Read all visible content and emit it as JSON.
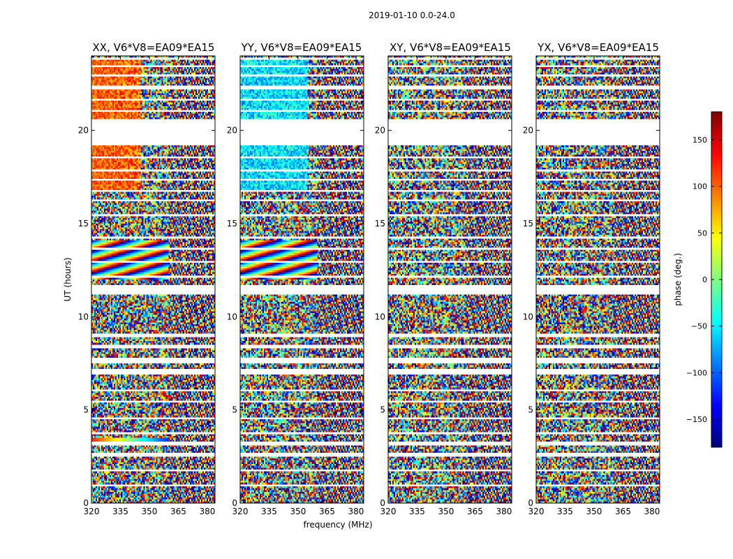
{
  "chart_data": {
    "type": "heatmap",
    "suptitle": "2019-01-10 0.0-24.0",
    "xlabel": "frequency (MHz)",
    "ylabel": "UT (hours)",
    "xlim": [
      320,
      384
    ],
    "ylim": [
      0,
      24
    ],
    "xticks": [
      "320",
      "335",
      "350",
      "365",
      "380"
    ],
    "yticks": [
      "0",
      "5",
      "10",
      "15",
      "20"
    ],
    "panels": [
      {
        "title": "XX, V6*V8=EA09*EA15"
      },
      {
        "title": "YY, V6*V8=EA09*EA15"
      },
      {
        "title": "XY, V6*V8=EA09*EA15"
      },
      {
        "title": "YX, V6*V8=EA09*EA15"
      }
    ],
    "colorbar": {
      "label": "phase (deg.)",
      "range": [
        -180,
        180
      ],
      "ticks": [
        "150",
        "100",
        "50",
        "0",
        "−50",
        "−100",
        "−150"
      ],
      "colormap": "jet",
      "colors": [
        "#00007f",
        "#0000ff",
        "#007fff",
        "#00ffff",
        "#7fff7f",
        "#ffff00",
        "#ff7f00",
        "#ff0000",
        "#7f0000"
      ]
    },
    "flagged_ut_ranges": [
      [
        0.9,
        1.0
      ],
      [
        1.7,
        1.8
      ],
      [
        2.5,
        2.7
      ],
      [
        3.1,
        3.25
      ],
      [
        3.7,
        3.8
      ],
      [
        4.5,
        4.6
      ],
      [
        5.4,
        5.5
      ],
      [
        6.0,
        6.1
      ],
      [
        6.9,
        7.2
      ],
      [
        7.55,
        7.8
      ],
      [
        8.3,
        8.5
      ],
      [
        8.9,
        9.1
      ],
      [
        11.2,
        11.7
      ],
      [
        12.1,
        12.2
      ],
      [
        12.9,
        13.0
      ],
      [
        13.6,
        13.7
      ],
      [
        14.2,
        14.3
      ],
      [
        15.4,
        15.5
      ],
      [
        16.2,
        16.3
      ],
      [
        16.7,
        16.8
      ],
      [
        17.3,
        17.4
      ],
      [
        17.8,
        17.9
      ],
      [
        18.5,
        18.6
      ],
      [
        19.2,
        20.6
      ],
      [
        21.0,
        21.1
      ],
      [
        21.6,
        21.7
      ],
      [
        22.2,
        22.4
      ],
      [
        22.9,
        23.0
      ],
      [
        23.4,
        23.5
      ],
      [
        23.8,
        23.9
      ]
    ]
  }
}
